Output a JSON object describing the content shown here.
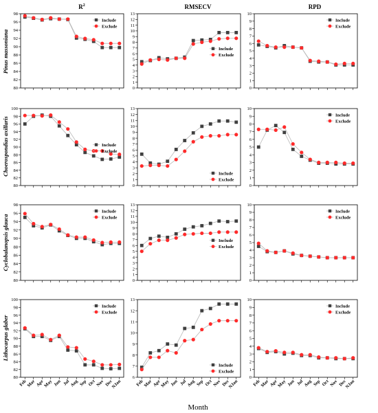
{
  "figure": {
    "x_axis_label": "Month",
    "column_titles": [
      "R",
      "RMSECV",
      "RPD"
    ],
    "column_title_superscripts": [
      "2",
      "",
      ""
    ],
    "row_labels": [
      "Pinus massoniana",
      "Choerospondias axillaris",
      "Cyclobalanopsis glauca",
      "Lithocarpus glaber"
    ],
    "legend_labels": [
      "Include",
      "Exclude"
    ],
    "months": [
      "Feb",
      "Mar",
      "Apr",
      "May",
      "Jun",
      "Jul",
      "Aug",
      "Sep",
      "Oct",
      "Nov",
      "Dec",
      "NJan"
    ],
    "colors": {
      "include": "#404040",
      "exclude": "#ff2b2b",
      "line": "#b8b8b8"
    }
  },
  "chart_data": [
    {
      "type": "line",
      "title": "R²",
      "row_label": "Pinus massoniana",
      "xlabel": "",
      "ylabel": "",
      "ylim": [
        80,
        98
      ],
      "yticks": [
        80,
        82,
        84,
        86,
        88,
        90,
        92,
        94,
        96,
        98
      ],
      "legend": "top-right",
      "categories": [
        "Feb",
        "Mar",
        "Apr",
        "May",
        "Jun",
        "Jul",
        "Aug",
        "Sep",
        "Oct",
        "Nov",
        "Dec",
        "NJan"
      ],
      "series": [
        {
          "name": "Include",
          "values": [
            97.2,
            96.9,
            96.5,
            96.8,
            96.7,
            96.6,
            92.1,
            91.8,
            91.3,
            89.8,
            89.8,
            89.8
          ]
        },
        {
          "name": "Exclude",
          "values": [
            97.5,
            97.0,
            96.6,
            97.0,
            96.7,
            96.7,
            92.5,
            92.0,
            91.7,
            90.8,
            90.8,
            90.8
          ]
        }
      ]
    },
    {
      "type": "line",
      "title": "RMSECV",
      "row_label": "Pinus massoniana",
      "xlabel": "",
      "ylabel": "",
      "ylim": [
        0,
        13
      ],
      "yticks": [
        0,
        1,
        2,
        3,
        4,
        5,
        6,
        7,
        8,
        9,
        10,
        11,
        12,
        13
      ],
      "legend": "center-right",
      "categories": [
        "Feb",
        "Mar",
        "Apr",
        "May",
        "Jun",
        "Jul",
        "Aug",
        "Sep",
        "Oct",
        "Nov",
        "Dec",
        "NJan"
      ],
      "series": [
        {
          "name": "Include",
          "values": [
            4.6,
            4.8,
            5.3,
            5.1,
            5.2,
            5.4,
            8.3,
            8.4,
            8.5,
            9.7,
            9.7,
            9.7
          ]
        },
        {
          "name": "Exclude",
          "values": [
            4.2,
            4.9,
            5.0,
            4.9,
            5.2,
            5.2,
            7.7,
            8.0,
            8.2,
            8.6,
            8.7,
            8.7
          ]
        }
      ]
    },
    {
      "type": "line",
      "title": "RPD",
      "row_label": "Pinus massoniana",
      "xlabel": "",
      "ylabel": "",
      "ylim": [
        0,
        10
      ],
      "yticks": [
        0,
        1,
        2,
        3,
        4,
        5,
        6,
        7,
        8,
        9,
        10
      ],
      "legend": "top-right",
      "categories": [
        "Feb",
        "Mar",
        "Apr",
        "May",
        "Jun",
        "Jul",
        "Aug",
        "Sep",
        "Oct",
        "Nov",
        "Dec",
        "NJan"
      ],
      "series": [
        {
          "name": "Include",
          "values": [
            5.8,
            5.6,
            5.4,
            5.7,
            5.5,
            5.4,
            3.6,
            3.5,
            3.5,
            3.1,
            3.1,
            3.1
          ]
        },
        {
          "name": "Exclude",
          "values": [
            6.3,
            5.7,
            5.5,
            5.5,
            5.5,
            5.4,
            3.7,
            3.6,
            3.5,
            3.2,
            3.3,
            3.3
          ]
        }
      ]
    },
    {
      "type": "line",
      "title": "",
      "row_label": "Choerospondias axillaris",
      "xlabel": "",
      "ylabel": "",
      "ylim": [
        80,
        100
      ],
      "yticks": [
        80,
        82,
        84,
        86,
        88,
        90,
        92,
        94,
        96,
        98,
        100
      ],
      "legend": "center-right",
      "categories": [
        "Feb",
        "Mar",
        "Apr",
        "May",
        "Jun",
        "Jul",
        "Aug",
        "Sep",
        "Oct",
        "Nov",
        "Dec",
        "NJan"
      ],
      "series": [
        {
          "name": "Include",
          "values": [
            96.0,
            98.0,
            98.3,
            98.0,
            95.5,
            93.0,
            90.6,
            88.6,
            87.7,
            86.8,
            86.9,
            87.4
          ]
        },
        {
          "name": "Exclude",
          "values": [
            98.2,
            98.2,
            98.1,
            98.3,
            96.5,
            94.7,
            91.3,
            89.4,
            89.0,
            89.0,
            88.2,
            88.1
          ]
        }
      ]
    },
    {
      "type": "line",
      "title": "",
      "row_label": "Choerospondias axillaris",
      "xlabel": "",
      "ylabel": "",
      "ylim": [
        0,
        13
      ],
      "yticks": [
        0,
        1,
        2,
        3,
        4,
        5,
        6,
        7,
        8,
        9,
        10,
        11,
        12,
        13
      ],
      "legend": "bottom-right",
      "categories": [
        "Feb",
        "Mar",
        "Apr",
        "May",
        "Jun",
        "Jul",
        "Aug",
        "Sep",
        "Oct",
        "Nov",
        "Dec",
        "NJan"
      ],
      "series": [
        {
          "name": "Include",
          "values": [
            5.3,
            3.8,
            3.6,
            4.1,
            6.1,
            7.6,
            8.9,
            10.0,
            10.4,
            10.9,
            10.9,
            10.7
          ]
        },
        {
          "name": "Exclude",
          "values": [
            3.3,
            3.4,
            3.4,
            3.3,
            4.4,
            5.8,
            7.4,
            8.2,
            8.4,
            8.4,
            8.6,
            8.6
          ]
        }
      ]
    },
    {
      "type": "line",
      "title": "",
      "row_label": "Choerospondias axillaris",
      "xlabel": "",
      "ylabel": "",
      "ylim": [
        0,
        10
      ],
      "yticks": [
        0,
        1,
        2,
        3,
        4,
        5,
        6,
        7,
        8,
        9,
        10
      ],
      "legend": "top-right",
      "categories": [
        "Feb",
        "Mar",
        "Apr",
        "May",
        "Jun",
        "Jul",
        "Aug",
        "Sep",
        "Oct",
        "Nov",
        "Dec",
        "NJan"
      ],
      "series": [
        {
          "name": "Include",
          "values": [
            5.0,
            7.2,
            7.8,
            6.9,
            4.7,
            3.8,
            3.3,
            2.9,
            2.9,
            2.8,
            2.8,
            2.8
          ]
        },
        {
          "name": "Exclude",
          "values": [
            7.3,
            7.3,
            7.2,
            7.6,
            5.4,
            4.3,
            3.4,
            3.0,
            3.0,
            3.0,
            2.9,
            2.9
          ]
        }
      ]
    },
    {
      "type": "line",
      "title": "",
      "row_label": "Cyclobalanopsis glauca",
      "xlabel": "",
      "ylabel": "",
      "ylim": [
        80,
        98
      ],
      "yticks": [
        80,
        82,
        84,
        86,
        88,
        90,
        92,
        94,
        96,
        98
      ],
      "legend": "top-right",
      "categories": [
        "Feb",
        "Mar",
        "Apr",
        "May",
        "Jun",
        "Jul",
        "Aug",
        "Sep",
        "Oct",
        "Nov",
        "Dec",
        "NJan"
      ],
      "series": [
        {
          "name": "Include",
          "values": [
            95.0,
            93.0,
            92.5,
            93.2,
            91.8,
            90.7,
            90.0,
            90.0,
            89.2,
            88.5,
            88.8,
            88.8
          ]
        },
        {
          "name": "Exclude",
          "values": [
            95.9,
            93.5,
            92.8,
            93.3,
            92.2,
            90.8,
            90.3,
            90.3,
            89.6,
            89.0,
            89.1,
            89.1
          ]
        }
      ]
    },
    {
      "type": "line",
      "title": "",
      "row_label": "Cyclobalanopsis glauca",
      "xlabel": "",
      "ylabel": "",
      "ylim": [
        0,
        13
      ],
      "yticks": [
        0,
        1,
        2,
        3,
        4,
        5,
        6,
        7,
        8,
        9,
        10,
        11,
        12,
        13
      ],
      "legend": "center-right",
      "categories": [
        "Feb",
        "Mar",
        "Apr",
        "May",
        "Jun",
        "Jul",
        "Aug",
        "Sep",
        "Oct",
        "Nov",
        "Dec",
        "NJan"
      ],
      "series": [
        {
          "name": "Include",
          "values": [
            6.0,
            7.2,
            7.6,
            7.4,
            8.0,
            8.8,
            9.2,
            9.4,
            9.8,
            10.2,
            10.1,
            10.2
          ]
        },
        {
          "name": "Exclude",
          "values": [
            5.0,
            6.3,
            6.9,
            6.9,
            7.3,
            7.9,
            8.0,
            8.1,
            8.1,
            8.3,
            8.3,
            8.3
          ]
        }
      ]
    },
    {
      "type": "line",
      "title": "",
      "row_label": "Cyclobalanopsis glauca",
      "xlabel": "",
      "ylabel": "",
      "ylim": [
        0,
        10
      ],
      "yticks": [
        0,
        1,
        2,
        3,
        4,
        5,
        6,
        7,
        8,
        9,
        10
      ],
      "legend": "top-right",
      "categories": [
        "Feb",
        "Mar",
        "Apr",
        "May",
        "Jun",
        "Jul",
        "Aug",
        "Sep",
        "Oct",
        "Nov",
        "Dec",
        "NJan"
      ],
      "series": [
        {
          "name": "Include",
          "values": [
            4.5,
            3.8,
            3.7,
            3.9,
            3.5,
            3.3,
            3.2,
            3.1,
            3.0,
            3.0,
            3.0,
            3.0
          ]
        },
        {
          "name": "Exclude",
          "values": [
            4.9,
            3.9,
            3.7,
            3.9,
            3.6,
            3.3,
            3.2,
            3.1,
            3.0,
            3.0,
            3.0,
            3.0
          ]
        }
      ]
    },
    {
      "type": "line",
      "title": "",
      "row_label": "Lithocarpus glaber",
      "xlabel": "",
      "ylabel": "",
      "ylim": [
        80,
        100
      ],
      "yticks": [
        80,
        82,
        84,
        86,
        88,
        90,
        92,
        94,
        96,
        98,
        100
      ],
      "legend": "top-right",
      "categories": [
        "Feb",
        "Mar",
        "Apr",
        "May",
        "Jun",
        "Jul",
        "Aug",
        "Sep",
        "Oct",
        "Nov",
        "Dec",
        "NJan"
      ],
      "series": [
        {
          "name": "Include",
          "values": [
            92.5,
            90.5,
            90.5,
            89.5,
            90.5,
            87.0,
            86.8,
            83.2,
            83.2,
            82.3,
            82.2,
            82.3
          ]
        },
        {
          "name": "Exclude",
          "values": [
            92.7,
            90.8,
            91.0,
            89.7,
            90.8,
            87.8,
            87.6,
            84.7,
            84.1,
            83.2,
            83.2,
            83.3
          ]
        }
      ]
    },
    {
      "type": "line",
      "title": "",
      "row_label": "Lithocarpus glaber",
      "xlabel": "",
      "ylabel": "",
      "ylim": [
        6,
        13
      ],
      "yticks": [
        6,
        7,
        8,
        9,
        10,
        11,
        12,
        13
      ],
      "legend": "bottom-right",
      "categories": [
        "Feb",
        "Mar",
        "Apr",
        "May",
        "Jun",
        "Jul",
        "Aug",
        "Sep",
        "Oct",
        "Nov",
        "Dec",
        "NJan"
      ],
      "series": [
        {
          "name": "Include",
          "values": [
            6.9,
            8.2,
            8.4,
            9.0,
            8.9,
            10.4,
            10.5,
            12.0,
            12.2,
            12.6,
            12.6,
            12.6
          ]
        },
        {
          "name": "Exclude",
          "values": [
            6.7,
            7.8,
            7.8,
            8.4,
            8.2,
            9.3,
            9.4,
            10.3,
            10.8,
            11.1,
            11.1,
            11.1
          ]
        }
      ]
    },
    {
      "type": "line",
      "title": "",
      "row_label": "Lithocarpus glaber",
      "xlabel": "",
      "ylabel": "",
      "ylim": [
        0,
        10
      ],
      "yticks": [
        0,
        1,
        2,
        3,
        4,
        5,
        6,
        7,
        8,
        9,
        10
      ],
      "legend": "top-right",
      "categories": [
        "Feb",
        "Mar",
        "Apr",
        "May",
        "Jun",
        "Jul",
        "Aug",
        "Sep",
        "Oct",
        "Nov",
        "Dec",
        "NJan"
      ],
      "series": [
        {
          "name": "Include",
          "values": [
            3.7,
            3.2,
            3.3,
            3.0,
            3.1,
            2.8,
            2.8,
            2.5,
            2.5,
            2.4,
            2.4,
            2.4
          ]
        },
        {
          "name": "Exclude",
          "values": [
            3.8,
            3.3,
            3.4,
            3.2,
            3.2,
            2.9,
            2.9,
            2.6,
            2.5,
            2.5,
            2.4,
            2.5
          ]
        }
      ]
    }
  ]
}
